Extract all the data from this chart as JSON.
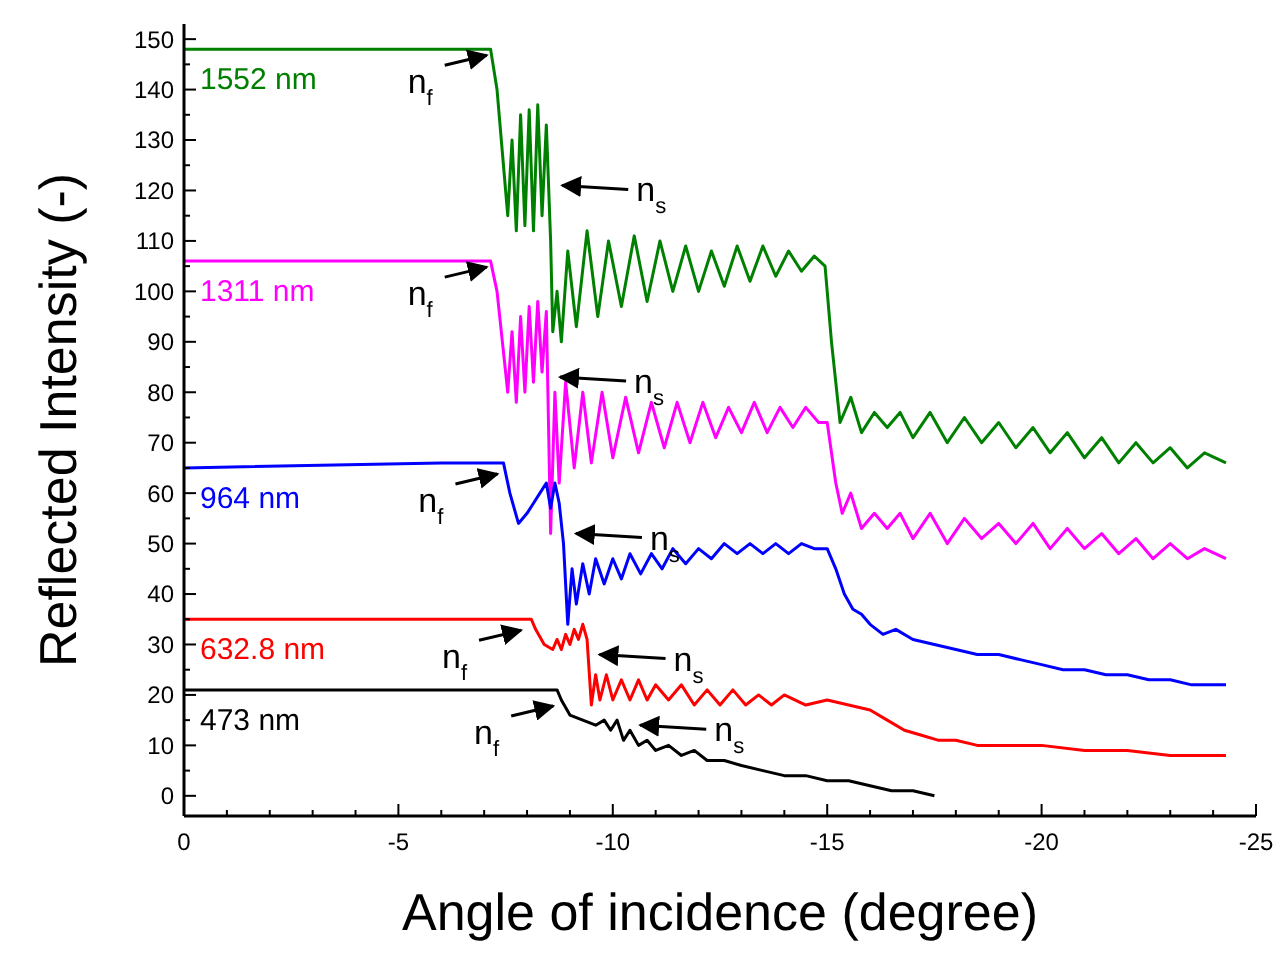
{
  "chart_data": {
    "type": "line",
    "xlabel": "Angle of incidence (degree)",
    "ylabel": "Reflected Intensity (-)",
    "xlim": [
      0,
      -25
    ],
    "xticks": [
      0,
      -5,
      -10,
      -15,
      -20,
      -25
    ],
    "ylim": [
      -4,
      153
    ],
    "yticks": [
      0,
      10,
      20,
      30,
      40,
      50,
      60,
      70,
      80,
      90,
      100,
      110,
      120,
      130,
      140,
      150
    ],
    "grid": false,
    "marker": "none",
    "line_style": "solid",
    "series": [
      {
        "name": "1552 nm",
        "color": "#008000",
        "x": [
          0,
          -3,
          -6,
          -7.15,
          -7.3,
          -7.45,
          -7.55,
          -7.65,
          -7.75,
          -7.85,
          -7.95,
          -8.05,
          -8.15,
          -8.25,
          -8.35,
          -8.45,
          -8.55,
          -8.6,
          -8.7,
          -8.8,
          -8.95,
          -9.15,
          -9.4,
          -9.65,
          -9.9,
          -10.2,
          -10.5,
          -10.8,
          -11.1,
          -11.4,
          -11.7,
          -12,
          -12.3,
          -12.6,
          -12.9,
          -13.2,
          -13.5,
          -13.8,
          -14.1,
          -14.4,
          -14.7,
          -14.95,
          -15.1,
          -15.3,
          -15.55,
          -15.8,
          -16.1,
          -16.4,
          -16.7,
          -17,
          -17.4,
          -17.8,
          -18.2,
          -18.6,
          -19,
          -19.4,
          -19.8,
          -20.2,
          -20.6,
          -21,
          -21.4,
          -21.8,
          -22.2,
          -22.6,
          -23,
          -23.4,
          -23.8,
          -24.3
        ],
        "values": [
          148,
          148,
          148,
          148,
          140,
          125,
          115,
          130,
          112,
          135,
          113,
          136,
          112,
          137,
          115,
          133,
          110,
          92,
          100,
          90,
          108,
          93,
          112,
          95,
          110,
          97,
          111,
          98,
          110,
          100,
          109,
          100,
          108,
          101,
          109,
          102,
          109,
          103,
          108,
          104,
          107,
          105,
          90,
          74,
          79,
          72,
          76,
          73,
          76,
          71,
          76,
          70,
          75,
          70,
          74,
          69,
          73,
          68,
          72,
          67,
          71,
          66,
          70,
          66,
          69,
          65,
          68,
          66
        ]
      },
      {
        "name": "1311 nm",
        "color": "#ff00ff",
        "x": [
          0,
          -6,
          -7.15,
          -7.3,
          -7.45,
          -7.55,
          -7.65,
          -7.75,
          -7.85,
          -7.95,
          -8.05,
          -8.15,
          -8.25,
          -8.35,
          -8.45,
          -8.55,
          -8.65,
          -8.75,
          -8.9,
          -9.1,
          -9.3,
          -9.5,
          -9.75,
          -10,
          -10.3,
          -10.6,
          -10.9,
          -11.2,
          -11.5,
          -11.8,
          -12.1,
          -12.4,
          -12.7,
          -13,
          -13.3,
          -13.6,
          -13.9,
          -14.2,
          -14.5,
          -14.8,
          -15,
          -15.2,
          -15.35,
          -15.55,
          -15.8,
          -16.1,
          -16.4,
          -16.7,
          -17,
          -17.4,
          -17.8,
          -18.2,
          -18.6,
          -19,
          -19.4,
          -19.8,
          -20.2,
          -20.6,
          -21,
          -21.4,
          -21.8,
          -22.2,
          -22.6,
          -23,
          -23.4,
          -23.8,
          -24.3
        ],
        "values": [
          106,
          106,
          106,
          100,
          88,
          80,
          92,
          78,
          95,
          80,
          97,
          82,
          98,
          84,
          96,
          52,
          80,
          62,
          82,
          65,
          80,
          66,
          80,
          67,
          79,
          68,
          78,
          69,
          78,
          70,
          78,
          71,
          77,
          72,
          78,
          72,
          77,
          73,
          77,
          74,
          74,
          62,
          56,
          60,
          53,
          56,
          53,
          56,
          51,
          56,
          50,
          55,
          51,
          54,
          50,
          54,
          49,
          53,
          49,
          52,
          48,
          51,
          47,
          50,
          47,
          49,
          47
        ]
      },
      {
        "name": "964 nm",
        "color": "#0000ff",
        "x": [
          0,
          -6,
          -7.45,
          -7.6,
          -7.8,
          -8,
          -8.15,
          -8.3,
          -8.45,
          -8.55,
          -8.65,
          -8.75,
          -8.85,
          -8.95,
          -9.05,
          -9.15,
          -9.3,
          -9.45,
          -9.6,
          -9.8,
          -10,
          -10.2,
          -10.4,
          -10.65,
          -10.9,
          -11.15,
          -11.4,
          -11.7,
          -12,
          -12.3,
          -12.6,
          -12.9,
          -13.2,
          -13.5,
          -13.8,
          -14.1,
          -14.4,
          -14.7,
          -15,
          -15.2,
          -15.4,
          -15.6,
          -15.8,
          -16,
          -16.3,
          -16.6,
          -17,
          -17.5,
          -18,
          -18.5,
          -19,
          -19.5,
          -20,
          -20.5,
          -21,
          -21.5,
          -22,
          -22.5,
          -23,
          -23.5,
          -24.3
        ],
        "values": [
          65,
          66,
          66,
          60,
          54,
          56,
          58,
          60,
          62,
          57,
          62,
          58,
          50,
          34,
          45,
          38,
          46,
          40,
          47,
          42,
          47,
          43,
          48,
          44,
          48,
          45,
          49,
          46,
          49,
          47,
          50,
          48,
          50,
          48,
          50,
          48,
          50,
          49,
          49,
          45,
          40,
          37,
          36,
          34,
          32,
          33,
          31,
          30,
          29,
          28,
          28,
          27,
          26,
          25,
          25,
          24,
          24,
          23,
          23,
          22,
          22
        ]
      },
      {
        "name": "632.8 nm",
        "color": "#ff0000",
        "x": [
          0,
          -6,
          -8.1,
          -8.2,
          -8.4,
          -8.6,
          -8.7,
          -8.8,
          -8.9,
          -9,
          -9.1,
          -9.2,
          -9.3,
          -9.4,
          -9.5,
          -9.6,
          -9.7,
          -9.85,
          -10,
          -10.2,
          -10.4,
          -10.6,
          -10.8,
          -11,
          -11.3,
          -11.6,
          -11.9,
          -12.2,
          -12.5,
          -12.8,
          -13.1,
          -13.4,
          -13.7,
          -14,
          -14.5,
          -15,
          -15.5,
          -16,
          -16.4,
          -16.8,
          -17.2,
          -17.6,
          -18,
          -18.5,
          -19,
          -20,
          -21,
          -22,
          -23,
          -24.3
        ],
        "values": [
          35,
          35,
          35,
          33,
          30,
          29,
          31,
          29,
          32,
          30,
          33,
          31,
          34,
          31,
          18,
          24,
          19,
          24,
          19,
          23,
          19,
          23,
          19,
          22,
          19,
          22,
          18,
          21,
          18,
          21,
          18,
          20,
          18,
          20,
          18,
          19,
          18,
          17,
          15,
          13,
          12,
          11,
          11,
          10,
          10,
          10,
          9,
          9,
          8,
          8
        ]
      },
      {
        "name": "473 nm",
        "color": "#000000",
        "x": [
          0,
          -6,
          -8.7,
          -8.8,
          -9,
          -9.3,
          -9.6,
          -9.8,
          -9.95,
          -10.1,
          -10.25,
          -10.4,
          -10.6,
          -10.8,
          -11,
          -11.3,
          -11.6,
          -11.9,
          -12.2,
          -12.6,
          -13,
          -13.5,
          -14,
          -14.5,
          -15,
          -15.5,
          -16,
          -16.5,
          -17,
          -17.5
        ],
        "values": [
          21,
          21,
          21,
          19,
          16,
          15,
          14,
          15,
          13,
          15,
          11,
          13,
          10,
          11,
          9,
          10,
          8,
          9,
          7,
          7,
          6,
          5,
          4,
          4,
          3,
          3,
          2,
          1,
          1,
          0
        ]
      }
    ],
    "annotations": [
      {
        "text": "n$_{f}$",
        "x": -7.2,
        "y": 148
      },
      {
        "text": "n$_{s}$",
        "x": -8.68,
        "y": 121
      },
      {
        "text": "n$_{f}$",
        "x": -7.2,
        "y": 106
      },
      {
        "text": "n$_{s}$",
        "x": -8.63,
        "y": 83
      },
      {
        "text": "n$_{f}$",
        "x": -7.45,
        "y": 65
      },
      {
        "text": "n$_{s}$",
        "x": -9,
        "y": 52
      },
      {
        "text": "n$_{f}$",
        "x": -8,
        "y": 34
      },
      {
        "text": "n$_{s}$",
        "x": -9.55,
        "y": 28
      },
      {
        "text": "n$_{f}$",
        "x": -8.75,
        "y": 19
      },
      {
        "text": "n$_{s}$",
        "x": -10.5,
        "y": 14
      }
    ]
  }
}
